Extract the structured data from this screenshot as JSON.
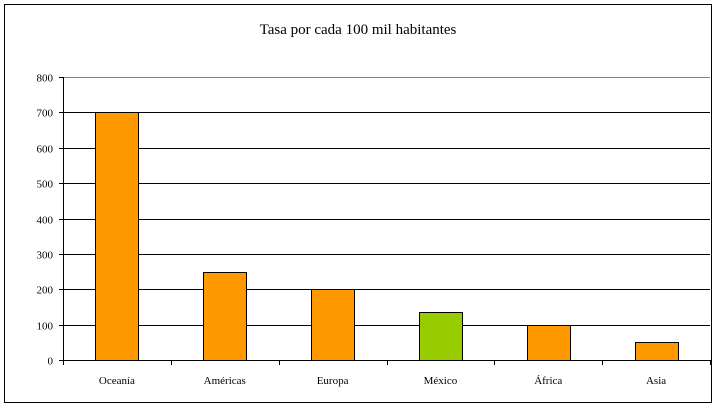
{
  "chart_data": {
    "type": "bar",
    "title": "Tasa por cada 100 mil habitantes",
    "xlabel": "",
    "ylabel": "",
    "categories": [
      "Oceanía",
      "Américas",
      "Europa",
      "México",
      "África",
      "Asia"
    ],
    "values": [
      700,
      250,
      200,
      135,
      100,
      50
    ],
    "bar_colors": [
      "#FF9900",
      "#FF9900",
      "#FF9900",
      "#99CC00",
      "#FF9900",
      "#FF9900"
    ],
    "ylim": [
      0,
      800
    ],
    "yticks": [
      0,
      100,
      200,
      300,
      400,
      500,
      600,
      700,
      800
    ],
    "grid": true,
    "legend": "none"
  }
}
